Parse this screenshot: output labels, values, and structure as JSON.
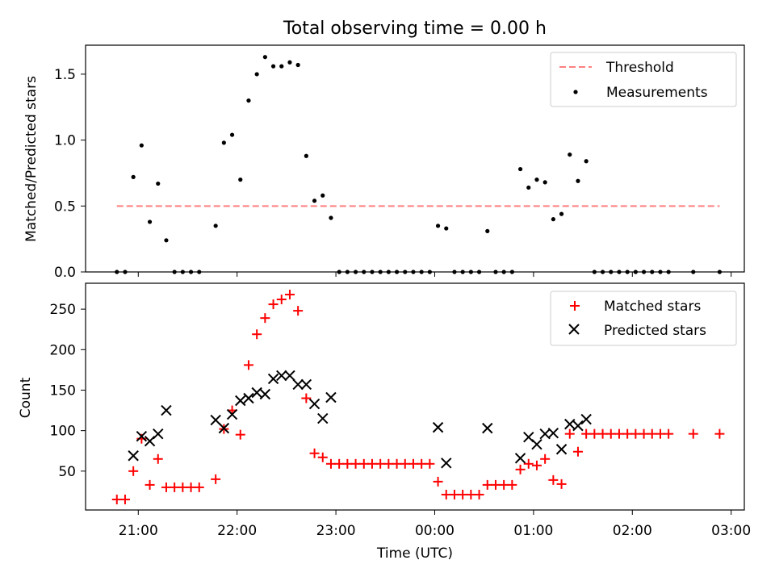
{
  "title": "Total observing time = 0.00 h",
  "colors": {
    "threshold": "#ff7f7f",
    "measurements": "#000000",
    "matched": "#ff0000",
    "predicted": "#000000"
  },
  "top_panel": {
    "ylabel": "Matched/Predicted stars",
    "yticks": [
      "0.0",
      "0.5",
      "1.0",
      "1.5"
    ],
    "legend": {
      "threshold": "Threshold",
      "measurements": "Measurements"
    }
  },
  "bottom_panel": {
    "ylabel": "Count",
    "xlabel": "Time (UTC)",
    "yticks": [
      "50",
      "100",
      "150",
      "200",
      "250"
    ],
    "xticks": [
      "21:00",
      "22:00",
      "23:00",
      "00:00",
      "01:00",
      "02:00",
      "03:00"
    ],
    "legend": {
      "matched": "Matched stars",
      "predicted": "Predicted stars"
    }
  },
  "chart_data": [
    {
      "type": "scatter",
      "panel": "top",
      "ylabel": "Matched/Predicted stars",
      "ylim": [
        0,
        1.72
      ],
      "xlim": [
        "20:28",
        "03:08"
      ],
      "legend_position": "upper right",
      "threshold": {
        "name": "Threshold",
        "y": 0.5,
        "x_start": "20:47",
        "x_end": "02:53",
        "style": "dashed"
      },
      "series": [
        {
          "name": "Measurements",
          "points": [
            [
              "20:47",
              0.0
            ],
            [
              "20:52",
              0.0
            ],
            [
              "20:57",
              0.72
            ],
            [
              "21:02",
              0.96
            ],
            [
              "21:07",
              0.38
            ],
            [
              "21:12",
              0.67
            ],
            [
              "21:17",
              0.24
            ],
            [
              "21:22",
              0.0
            ],
            [
              "21:27",
              0.0
            ],
            [
              "21:32",
              0.0
            ],
            [
              "21:37",
              0.0
            ],
            [
              "21:47",
              0.35
            ],
            [
              "21:52",
              0.98
            ],
            [
              "21:57",
              1.04
            ],
            [
              "22:02",
              0.7
            ],
            [
              "22:07",
              1.3
            ],
            [
              "22:12",
              1.5
            ],
            [
              "22:17",
              1.63
            ],
            [
              "22:22",
              1.56
            ],
            [
              "22:27",
              1.56
            ],
            [
              "22:32",
              1.59
            ],
            [
              "22:37",
              1.57
            ],
            [
              "22:42",
              0.88
            ],
            [
              "22:47",
              0.54
            ],
            [
              "22:52",
              0.58
            ],
            [
              "22:57",
              0.41
            ],
            [
              "23:02",
              0.0
            ],
            [
              "23:07",
              0.0
            ],
            [
              "23:12",
              0.0
            ],
            [
              "23:17",
              0.0
            ],
            [
              "23:22",
              0.0
            ],
            [
              "23:27",
              0.0
            ],
            [
              "23:32",
              0.0
            ],
            [
              "23:37",
              0.0
            ],
            [
              "23:42",
              0.0
            ],
            [
              "23:47",
              0.0
            ],
            [
              "23:52",
              0.0
            ],
            [
              "23:57",
              0.0
            ],
            [
              "00:02",
              0.35
            ],
            [
              "00:07",
              0.33
            ],
            [
              "00:12",
              0.0
            ],
            [
              "00:17",
              0.0
            ],
            [
              "00:22",
              0.0
            ],
            [
              "00:27",
              0.0
            ],
            [
              "00:32",
              0.31
            ],
            [
              "00:37",
              0.0
            ],
            [
              "00:42",
              0.0
            ],
            [
              "00:47",
              0.0
            ],
            [
              "00:52",
              0.78
            ],
            [
              "00:57",
              0.64
            ],
            [
              "01:02",
              0.7
            ],
            [
              "01:07",
              0.68
            ],
            [
              "01:12",
              0.4
            ],
            [
              "01:17",
              0.44
            ],
            [
              "01:22",
              0.89
            ],
            [
              "01:27",
              0.69
            ],
            [
              "01:32",
              0.84
            ],
            [
              "01:37",
              0.0
            ],
            [
              "01:42",
              0.0
            ],
            [
              "01:47",
              0.0
            ],
            [
              "01:52",
              0.0
            ],
            [
              "01:57",
              0.0
            ],
            [
              "02:02",
              0.0
            ],
            [
              "02:07",
              0.0
            ],
            [
              "02:12",
              0.0
            ],
            [
              "02:17",
              0.0
            ],
            [
              "02:22",
              0.0
            ],
            [
              "02:37",
              0.0
            ],
            [
              "02:53",
              0.0
            ]
          ]
        }
      ]
    },
    {
      "type": "scatter",
      "panel": "bottom",
      "xlabel": "Time (UTC)",
      "ylabel": "Count",
      "ylim": [
        2,
        282
      ],
      "xlim": [
        "20:28",
        "03:08"
      ],
      "legend_position": "upper right",
      "series": [
        {
          "name": "Matched stars",
          "marker": "+",
          "points": [
            [
              "20:47",
              15
            ],
            [
              "20:52",
              15
            ],
            [
              "20:57",
              50
            ],
            [
              "21:02",
              90
            ],
            [
              "21:07",
              33
            ],
            [
              "21:12",
              65
            ],
            [
              "21:17",
              30
            ],
            [
              "21:22",
              30
            ],
            [
              "21:27",
              30
            ],
            [
              "21:32",
              30
            ],
            [
              "21:37",
              30
            ],
            [
              "21:47",
              40
            ],
            [
              "21:52",
              102
            ],
            [
              "21:57",
              125
            ],
            [
              "22:02",
              95
            ],
            [
              "22:07",
              181
            ],
            [
              "22:12",
              219
            ],
            [
              "22:17",
              239
            ],
            [
              "22:22",
              256
            ],
            [
              "22:27",
              262
            ],
            [
              "22:32",
              268
            ],
            [
              "22:37",
              248
            ],
            [
              "22:42",
              140
            ],
            [
              "22:47",
              72
            ],
            [
              "22:52",
              67
            ],
            [
              "22:57",
              59
            ],
            [
              "23:02",
              59
            ],
            [
              "23:07",
              59
            ],
            [
              "23:12",
              59
            ],
            [
              "23:17",
              59
            ],
            [
              "23:22",
              59
            ],
            [
              "23:27",
              59
            ],
            [
              "23:32",
              59
            ],
            [
              "23:37",
              59
            ],
            [
              "23:42",
              59
            ],
            [
              "23:47",
              59
            ],
            [
              "23:52",
              59
            ],
            [
              "23:57",
              59
            ],
            [
              "00:02",
              37
            ],
            [
              "00:07",
              21
            ],
            [
              "00:12",
              21
            ],
            [
              "00:17",
              21
            ],
            [
              "00:22",
              21
            ],
            [
              "00:27",
              21
            ],
            [
              "00:32",
              33
            ],
            [
              "00:37",
              33
            ],
            [
              "00:42",
              33
            ],
            [
              "00:47",
              33
            ],
            [
              "00:52",
              52
            ],
            [
              "00:57",
              59
            ],
            [
              "01:02",
              57
            ],
            [
              "01:07",
              65
            ],
            [
              "01:12",
              39
            ],
            [
              "01:17",
              34
            ],
            [
              "01:22",
              96
            ],
            [
              "01:27",
              74
            ],
            [
              "01:32",
              96
            ],
            [
              "01:37",
              96
            ],
            [
              "01:42",
              96
            ],
            [
              "01:47",
              96
            ],
            [
              "01:52",
              96
            ],
            [
              "01:57",
              96
            ],
            [
              "02:02",
              96
            ],
            [
              "02:07",
              96
            ],
            [
              "02:12",
              96
            ],
            [
              "02:17",
              96
            ],
            [
              "02:22",
              96
            ],
            [
              "02:37",
              96
            ],
            [
              "02:53",
              96
            ]
          ]
        },
        {
          "name": "Predicted stars",
          "marker": "x",
          "points": [
            [
              "20:57",
              69
            ],
            [
              "21:02",
              93
            ],
            [
              "21:07",
              87
            ],
            [
              "21:12",
              96
            ],
            [
              "21:17",
              125
            ],
            [
              "21:47",
              113
            ],
            [
              "21:52",
              103
            ],
            [
              "21:57",
              120
            ],
            [
              "22:02",
              137
            ],
            [
              "22:07",
              140
            ],
            [
              "22:12",
              147
            ],
            [
              "22:17",
              145
            ],
            [
              "22:22",
              164
            ],
            [
              "22:27",
              168
            ],
            [
              "22:32",
              168
            ],
            [
              "22:37",
              157
            ],
            [
              "22:42",
              157
            ],
            [
              "22:47",
              133
            ],
            [
              "22:52",
              115
            ],
            [
              "22:57",
              141
            ],
            [
              "00:02",
              104
            ],
            [
              "00:07",
              60
            ],
            [
              "00:32",
              103
            ],
            [
              "00:52",
              66
            ],
            [
              "00:57",
              92
            ],
            [
              "01:02",
              83
            ],
            [
              "01:07",
              96
            ],
            [
              "01:12",
              97
            ],
            [
              "01:17",
              77
            ],
            [
              "01:22",
              108
            ],
            [
              "01:27",
              106
            ],
            [
              "01:32",
              114
            ]
          ]
        }
      ]
    }
  ]
}
